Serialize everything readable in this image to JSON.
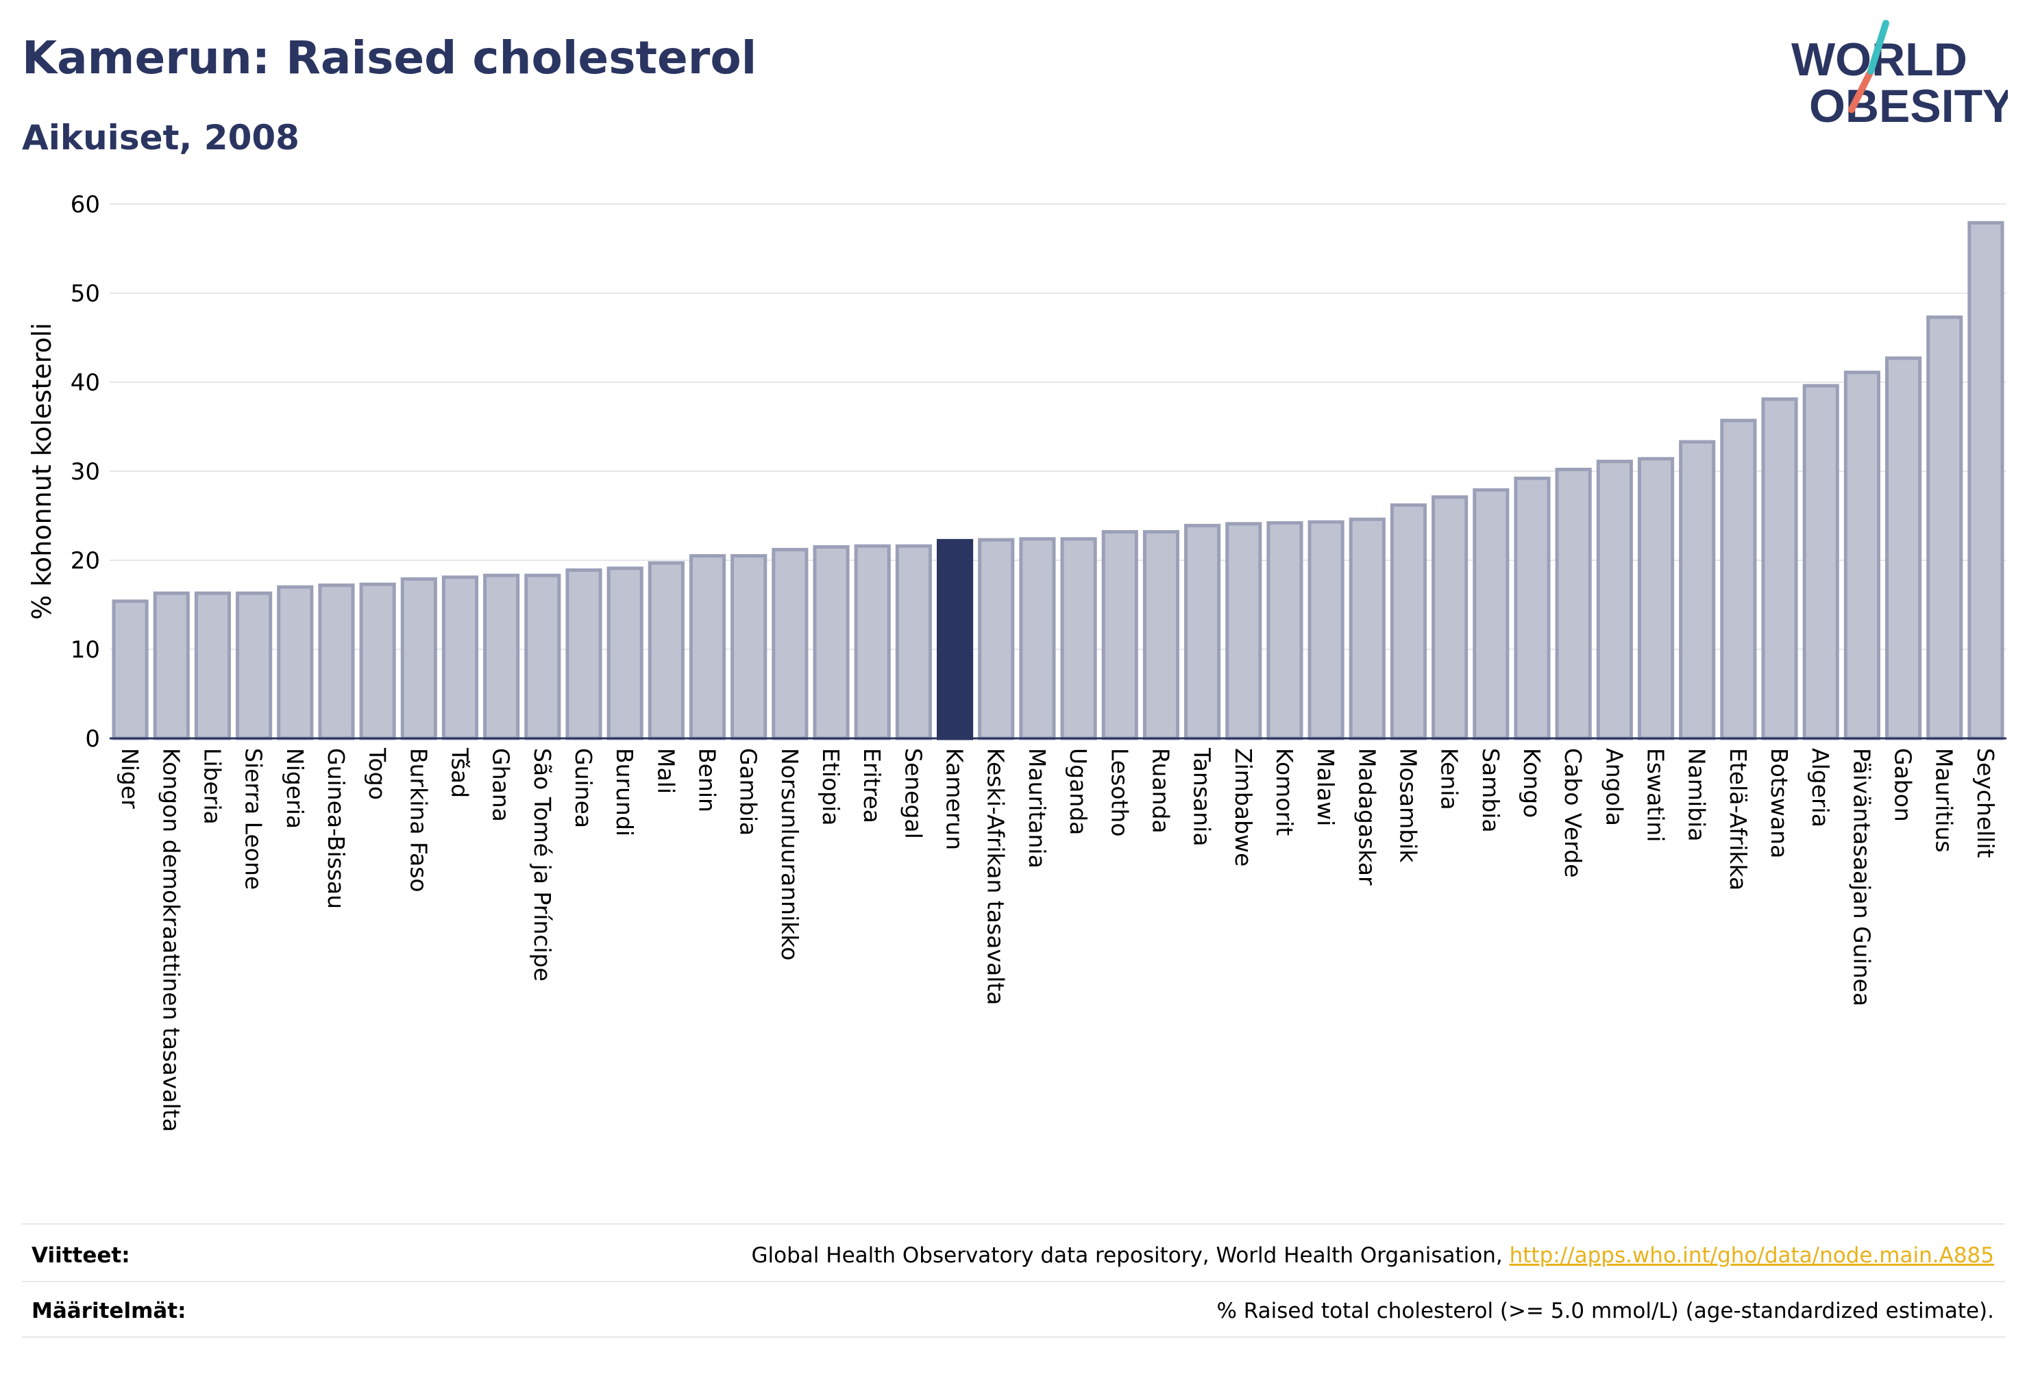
{
  "header": {
    "title": "Kamerun: Raised cholesterol",
    "subtitle": "Aikuiset, 2008"
  },
  "logo": {
    "line1": "WORLD",
    "line2": "OBESITY"
  },
  "chart_data": {
    "type": "bar",
    "title": "Kamerun: Raised cholesterol",
    "subtitle": "Aikuiset, 2008",
    "ylabel": "% kohonnut kolesteroli",
    "xlabel": "",
    "ylim": [
      0,
      60
    ],
    "yticks": [
      0,
      10,
      20,
      30,
      40,
      50,
      60
    ],
    "grid": true,
    "highlight": "Kamerun",
    "colors": {
      "bar": "#bfc2d1",
      "bar_border": "#9ba0b8",
      "highlight": "#2b3561"
    },
    "categories": [
      "Niger",
      "Kongon demokraattinen tasavalta",
      "Liberia",
      "Sierra Leone",
      "Nigeria",
      "Guinea-Bissau",
      "Togo",
      "Burkina Faso",
      "Tšad",
      "Ghana",
      "São Tomé ja Príncipe",
      "Guinea",
      "Burundi",
      "Mali",
      "Benin",
      "Gambia",
      "Norsunluurannikko",
      "Etiopia",
      "Eritrea",
      "Senegal",
      "Kamerun",
      "Keski-Afrikan tasavalta",
      "Mauritania",
      "Uganda",
      "Lesotho",
      "Ruanda",
      "Tansania",
      "Zimbabwe",
      "Komorit",
      "Malawi",
      "Madagaskar",
      "Mosambik",
      "Kenia",
      "Sambia",
      "Kongo",
      "Cabo Verde",
      "Angola",
      "Eswatini",
      "Namibia",
      "Etelä-Afrikka",
      "Botswana",
      "Algeria",
      "Päiväntasaajan Guinea",
      "Gabon",
      "Mauritius",
      "Seychellit"
    ],
    "values": [
      15.4,
      16.3,
      16.3,
      16.3,
      17.0,
      17.2,
      17.3,
      17.9,
      18.1,
      18.3,
      18.3,
      18.9,
      19.1,
      19.7,
      20.5,
      20.5,
      21.2,
      21.5,
      21.6,
      21.6,
      22.2,
      22.3,
      22.4,
      22.4,
      23.2,
      23.2,
      23.9,
      24.1,
      24.2,
      24.3,
      24.6,
      26.2,
      27.1,
      27.9,
      29.2,
      30.2,
      31.1,
      31.4,
      33.3,
      35.7,
      38.1,
      39.6,
      41.1,
      42.7,
      47.3,
      57.9
    ]
  },
  "footer": {
    "sources_label": "Viitteet:",
    "sources_text": "Global Health Observatory data repository, World Health Organisation,",
    "sources_link": "http://apps.who.int/gho/data/node.main.A885",
    "definitions_label": "Määritelmät:",
    "definitions_text": "% Raised total cholesterol (>= 5.0 mmol/L) (age-standardized estimate)."
  }
}
